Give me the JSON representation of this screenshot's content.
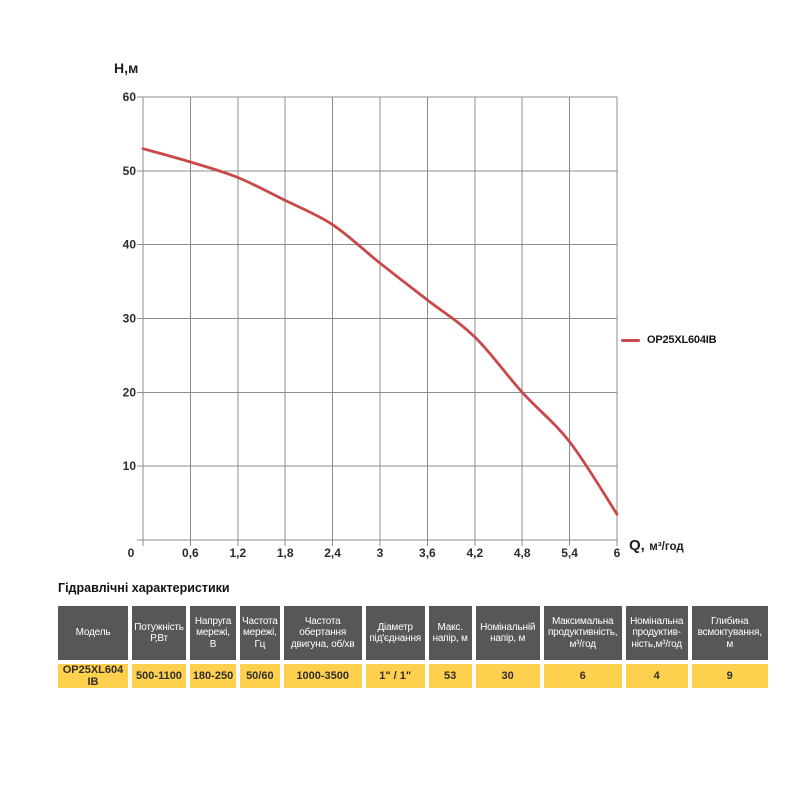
{
  "chart": {
    "ylabel": "H,м",
    "xlabel_symbol": "Q,",
    "xlabel_unit": "м³/год"
  },
  "chart_data": {
    "type": "line",
    "title": "",
    "xlabel": "Q, м³/год",
    "ylabel": "H,м",
    "xlim": [
      0,
      6
    ],
    "ylim": [
      0,
      60
    ],
    "grid": true,
    "x_ticks": [
      0,
      0.6,
      1.2,
      1.8,
      2.4,
      3,
      3.6,
      4.2,
      4.8,
      5.4,
      6
    ],
    "x_tick_labels": [
      "0",
      "0,6",
      "1,2",
      "1,8",
      "2,4",
      "3",
      "3,6",
      "4,2",
      "4,8",
      "5,4",
      "6"
    ],
    "y_ticks": [
      0,
      10,
      20,
      30,
      40,
      50,
      60
    ],
    "y_tick_labels": [
      "",
      "10",
      "20",
      "30",
      "40",
      "50",
      "60"
    ],
    "legend_position": "right-of-plot",
    "grid_color": "#8c8c8c",
    "series": [
      {
        "name": "OP25XL604IB",
        "color": "#c9494b",
        "x": [
          0,
          0.6,
          1.2,
          1.8,
          2.4,
          3,
          3.6,
          4.2,
          4.8,
          5.4,
          6
        ],
        "y": [
          53,
          51.2,
          49.1,
          46,
          42.7,
          37.5,
          32.5,
          27.5,
          20,
          13.3,
          3.5
        ]
      }
    ]
  },
  "table": {
    "title": "Гідравлічні характеристики",
    "columns": [
      {
        "header": "Модель",
        "value": "OP25XL604 IB"
      },
      {
        "header": "Потужність Р,Вт",
        "value": "500-1100"
      },
      {
        "header": "Напруга мережі, В",
        "value": "180-250"
      },
      {
        "header": "Частота мережі, Гц",
        "value": "50/60"
      },
      {
        "header": "Частота обертання двигуна, об/хв",
        "value": "1000-3500"
      },
      {
        "header": "Діаметр під'єднання",
        "value": "1\" / 1\""
      },
      {
        "header": "Макс. напір, м",
        "value": "53"
      },
      {
        "header": "Номінальній напір, м",
        "value": "30"
      },
      {
        "header": "Максимальна продуктивність, м³/год",
        "value": "6"
      },
      {
        "header": "Номінальна продуктив-ність,м³/год",
        "value": "4"
      },
      {
        "header": "Глибина всмоктування, м",
        "value": "9"
      }
    ]
  }
}
